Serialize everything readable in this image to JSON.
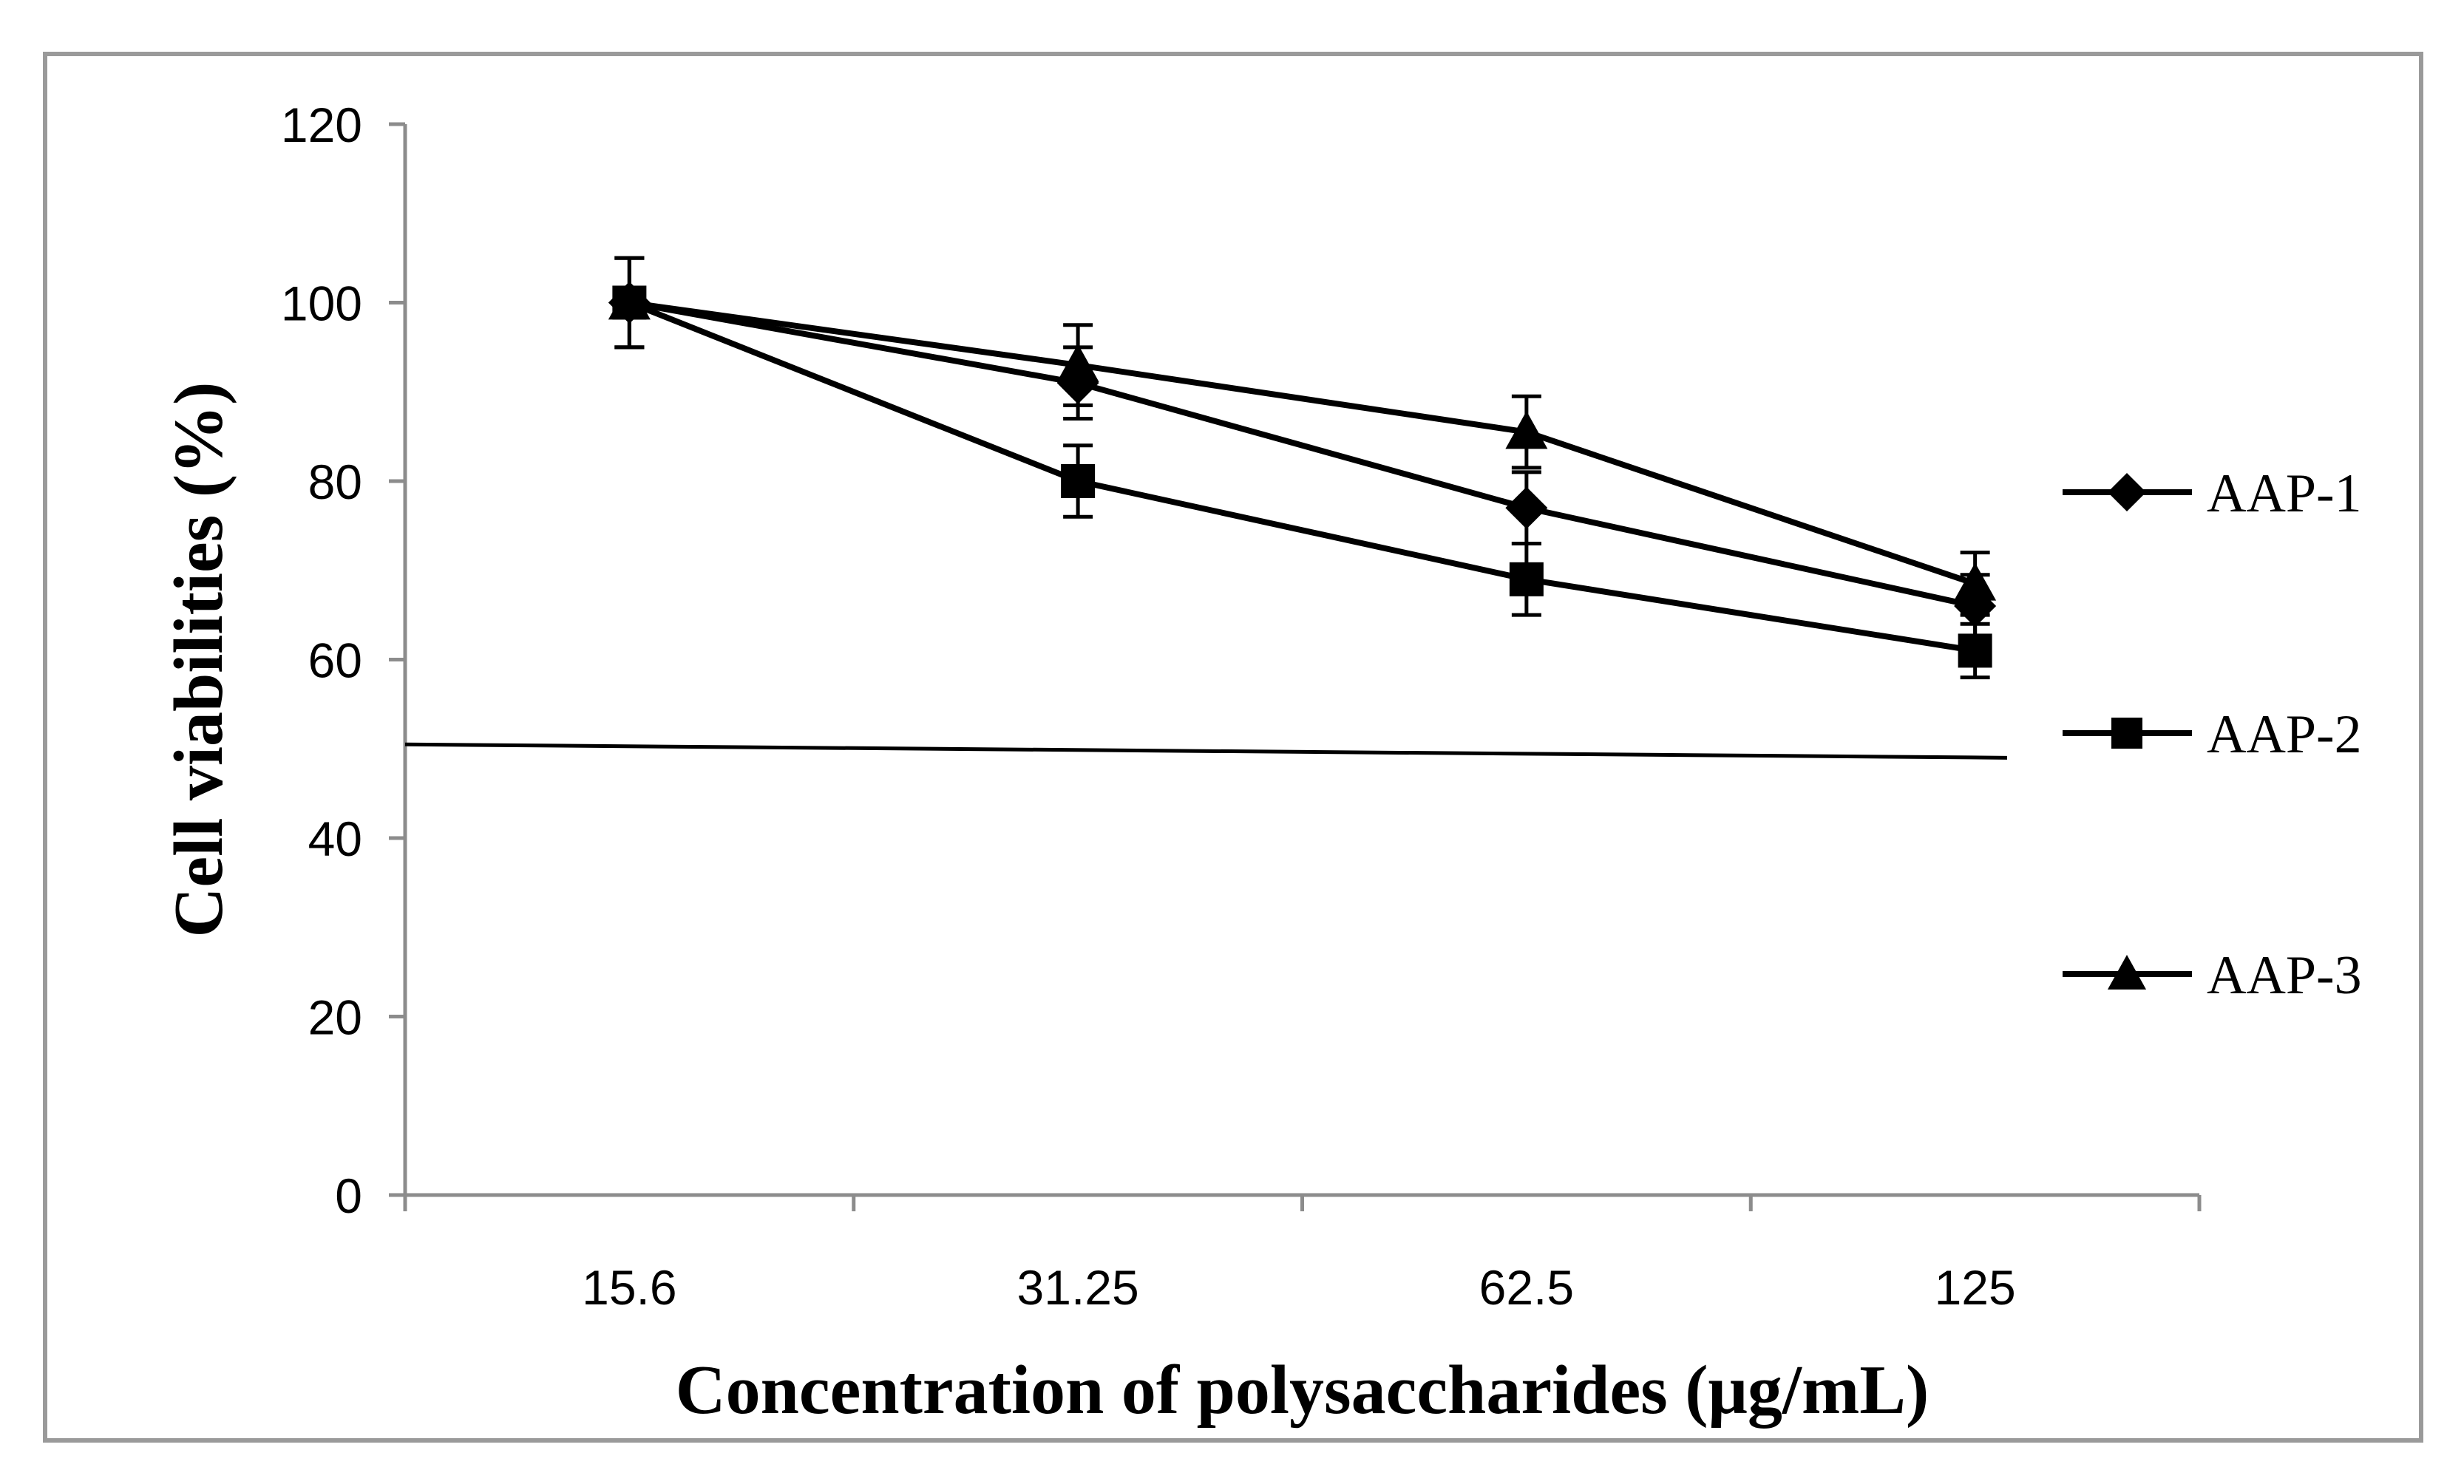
{
  "chart_data": {
    "type": "line",
    "title": "",
    "xlabel": "Concentration of polysaccharides (μg/mL)",
    "ylabel": "Cell viabilities (%)",
    "ylim": [
      0,
      120
    ],
    "yticks": [
      "0",
      "20",
      "40",
      "60",
      "80",
      "100",
      "120"
    ],
    "categories": [
      "15.6",
      "31.25",
      "62.5",
      "125"
    ],
    "series": [
      {
        "name": "AAP-1",
        "marker": "diamond",
        "values": [
          100,
          91,
          77,
          66
        ],
        "errors": [
          5,
          4,
          4,
          3.5
        ]
      },
      {
        "name": "AAP-2",
        "marker": "square",
        "values": [
          100,
          80,
          69,
          61
        ],
        "errors": [
          5,
          4,
          4,
          3
        ]
      },
      {
        "name": "AAP-3",
        "marker": "triangle",
        "values": [
          100,
          93,
          85.5,
          68.5
        ],
        "errors": [
          5,
          4.5,
          4,
          3.5
        ]
      }
    ],
    "reference_line": {
      "y_start": 50.5,
      "y_end": 49
    },
    "legend_position": "right",
    "grid": false,
    "colors": {
      "line": "#000000",
      "axis": "#8c8c8c",
      "frame": "#9a9a9a"
    }
  }
}
